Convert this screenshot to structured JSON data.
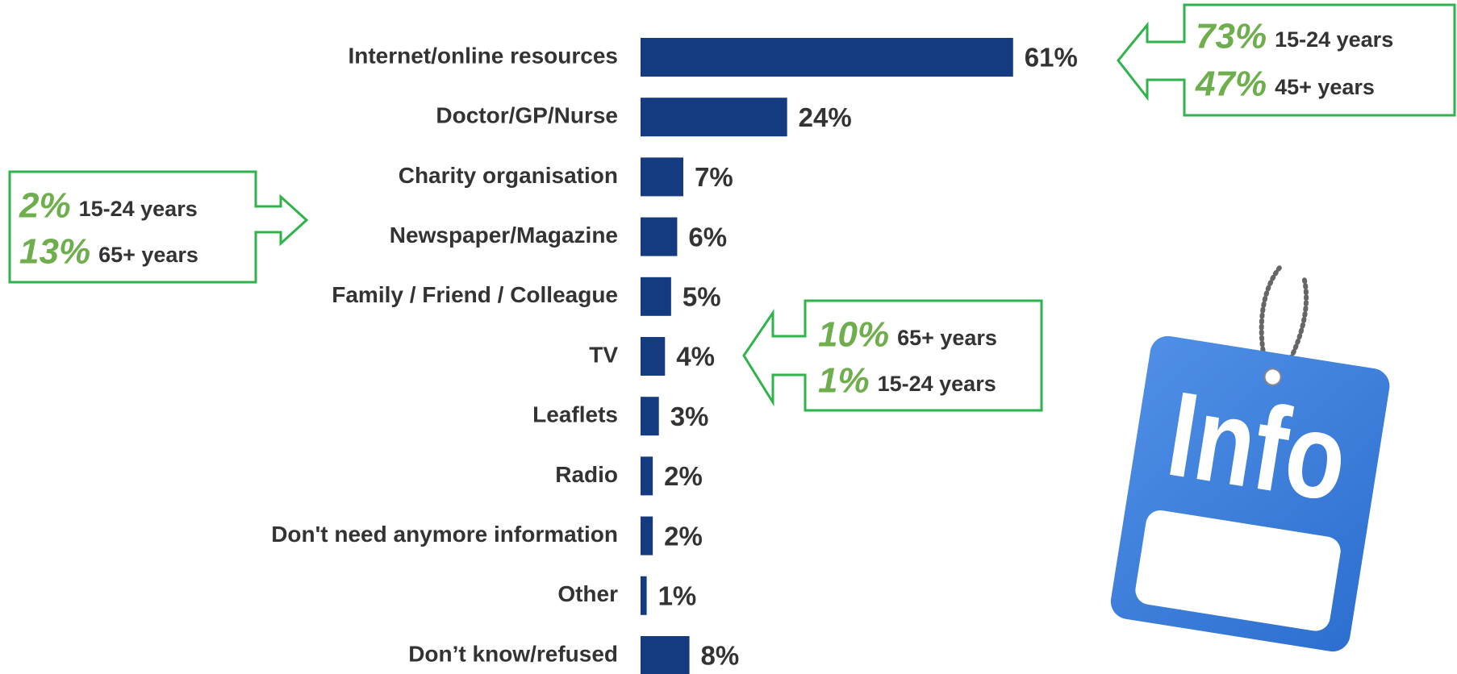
{
  "chart_data": {
    "type": "bar",
    "orientation": "horizontal",
    "categories": [
      "Internet/online resources",
      "Doctor/GP/Nurse",
      "Charity organisation",
      "Newspaper/Magazine",
      "Family / Friend / Colleague",
      "TV",
      "Leaflets",
      "Radio",
      "Don't need anymore information",
      "Other",
      "Don’t know/refused"
    ],
    "values": [
      61,
      24,
      7,
      6,
      5,
      4,
      3,
      2,
      2,
      1,
      8
    ],
    "value_labels": [
      "61%",
      "24%",
      "7%",
      "6%",
      "5%",
      "4%",
      "3%",
      "2%",
      "2%",
      "1%",
      "8%"
    ],
    "color": "#143a80",
    "callouts": [
      {
        "lines": [
          {
            "value": "73%",
            "group": "15-24 years"
          },
          {
            "value": "47%",
            "group": "45+ years"
          }
        ]
      },
      {
        "lines": [
          {
            "value": "2%",
            "group": "15-24 years"
          },
          {
            "value": "13%",
            "group": "65+ years"
          }
        ]
      },
      {
        "lines": [
          {
            "value": "10%",
            "group": "65+ years"
          },
          {
            "value": "1%",
            "group": "15-24 years"
          }
        ]
      }
    ],
    "tag_text": "Info"
  }
}
